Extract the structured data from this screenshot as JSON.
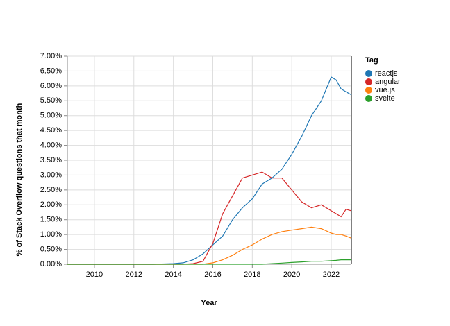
{
  "chart_data": {
    "type": "line",
    "x_label": "Year",
    "y_label": "% of Stack Overflow questions that month",
    "legend_title": "Tag",
    "legend_position": "right",
    "grid": true,
    "x": [
      2008.63,
      2009,
      2010,
      2011,
      2012,
      2013,
      2014,
      2014.5,
      2015,
      2015.5,
      2016,
      2016.5,
      2017,
      2017.5,
      2018,
      2018.5,
      2019,
      2019.5,
      2020,
      2020.5,
      2021,
      2021.5,
      2022,
      2022.25,
      2022.5,
      2022.75,
      2023.02
    ],
    "xlim": [
      2008.63,
      2023.02
    ],
    "xticks": [
      2010,
      2012,
      2014,
      2016,
      2018,
      2020,
      2022
    ],
    "ylim": [
      0,
      7
    ],
    "yticks": [
      {
        "value": 0,
        "label": "0.00%"
      },
      {
        "value": 0.5,
        "label": "0.50%"
      },
      {
        "value": 1,
        "label": "1.00%"
      },
      {
        "value": 1.5,
        "label": "1.50%"
      },
      {
        "value": 2,
        "label": "2.00%"
      },
      {
        "value": 2.5,
        "label": "2.50%"
      },
      {
        "value": 3,
        "label": "3.00%"
      },
      {
        "value": 3.5,
        "label": "3.50%"
      },
      {
        "value": 4,
        "label": "4.00%"
      },
      {
        "value": 4.5,
        "label": "4.50%"
      },
      {
        "value": 5,
        "label": "5.00%"
      },
      {
        "value": 5.5,
        "label": "5.50%"
      },
      {
        "value": 6,
        "label": "6.00%"
      },
      {
        "value": 6.5,
        "label": "6.50%"
      },
      {
        "value": 7,
        "label": "7.00%"
      }
    ],
    "series": [
      {
        "name": "reactjs",
        "color": "#1f77b4",
        "values": [
          0,
          0,
          0,
          0,
          0,
          0,
          0.02,
          0.05,
          0.15,
          0.35,
          0.65,
          0.95,
          1.5,
          1.9,
          2.2,
          2.7,
          2.9,
          3.2,
          3.7,
          4.3,
          5.0,
          5.5,
          6.3,
          6.2,
          5.9,
          5.8,
          5.7
        ]
      },
      {
        "name": "angular",
        "color": "#d62728",
        "values": [
          0,
          0,
          0,
          0,
          0,
          0,
          0,
          0,
          0.02,
          0.1,
          0.7,
          1.7,
          2.3,
          2.9,
          3.0,
          3.1,
          2.9,
          2.9,
          2.5,
          2.1,
          1.9,
          2.0,
          1.8,
          1.7,
          1.6,
          1.85,
          1.8
        ]
      },
      {
        "name": "vue.js",
        "color": "#ff7f0e",
        "values": [
          0,
          0,
          0,
          0,
          0,
          0,
          0,
          0,
          0,
          0,
          0.05,
          0.15,
          0.3,
          0.5,
          0.65,
          0.85,
          1.0,
          1.1,
          1.15,
          1.2,
          1.25,
          1.2,
          1.05,
          1.0,
          1.0,
          0.95,
          0.88
        ]
      },
      {
        "name": "svelte",
        "color": "#2ca02c",
        "values": [
          0,
          0,
          0,
          0,
          0,
          0,
          0,
          0,
          0,
          0,
          0,
          0,
          0,
          0,
          0,
          0,
          0.02,
          0.04,
          0.06,
          0.08,
          0.1,
          0.1,
          0.12,
          0.13,
          0.15,
          0.15,
          0.15
        ]
      }
    ]
  }
}
